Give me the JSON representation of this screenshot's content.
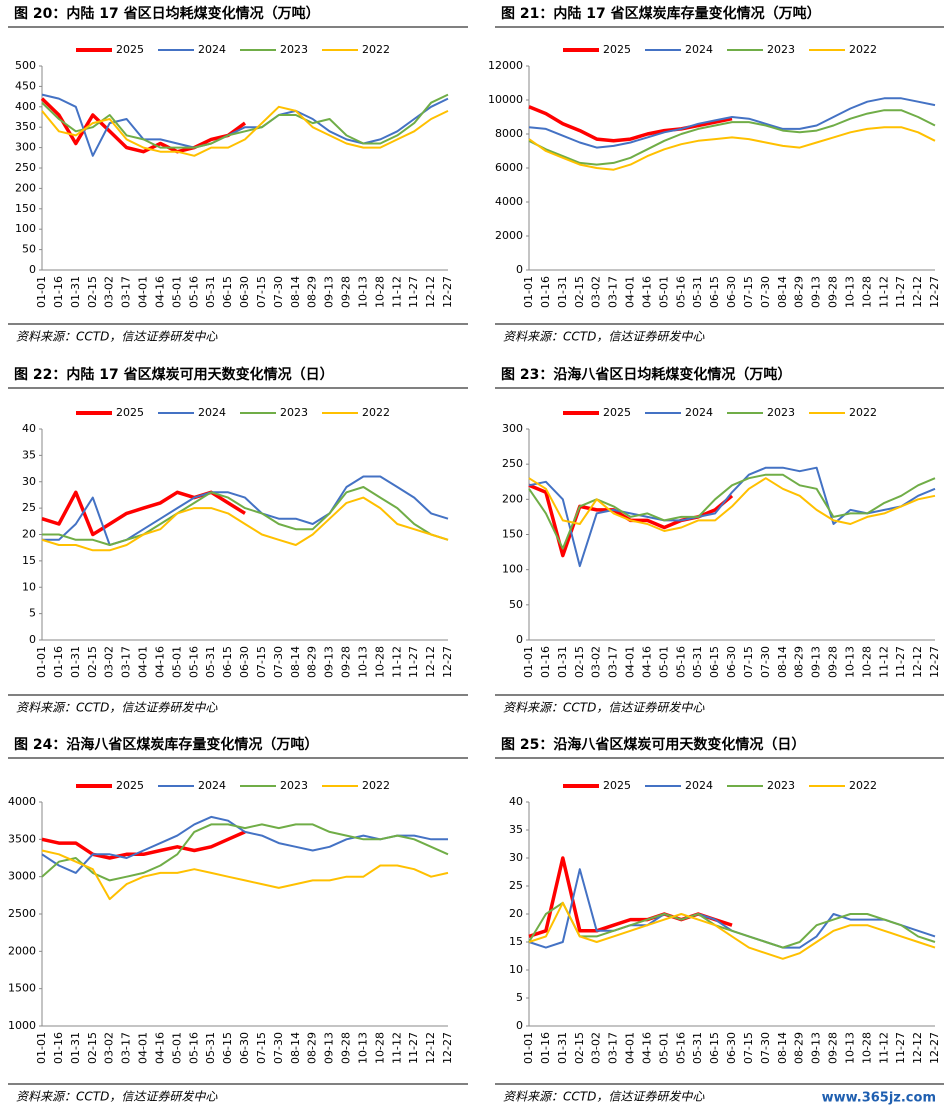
{
  "chart_data": [
    {
      "type": "line",
      "title": "图 20：内陆 17 省区日均耗煤变化情况（万吨）",
      "source": "资料来源：CCTD，信达证券研发中心",
      "categories": [
        "01-01",
        "01-16",
        "01-31",
        "02-15",
        "03-02",
        "03-17",
        "04-01",
        "04-16",
        "05-01",
        "05-16",
        "05-31",
        "06-15",
        "06-30",
        "07-15",
        "07-30",
        "08-14",
        "08-29",
        "09-13",
        "09-28",
        "10-13",
        "10-28",
        "11-12",
        "11-27",
        "12-12",
        "12-27"
      ],
      "ylim": [
        0,
        500
      ],
      "yticks": [
        0,
        50,
        100,
        150,
        200,
        250,
        300,
        350,
        400,
        450,
        500
      ],
      "series": [
        {
          "name": "2025",
          "color": "#ff0000",
          "values": [
            420,
            380,
            310,
            380,
            340,
            300,
            290,
            310,
            290,
            300,
            320,
            330,
            360,
            null,
            null,
            null,
            null,
            null,
            null,
            null,
            null,
            null,
            null,
            null,
            null
          ]
        },
        {
          "name": "2024",
          "color": "#4472c4",
          "values": [
            430,
            420,
            400,
            280,
            360,
            370,
            320,
            320,
            310,
            300,
            310,
            330,
            350,
            350,
            380,
            390,
            370,
            340,
            320,
            310,
            320,
            340,
            370,
            400,
            420
          ]
        },
        {
          "name": "2023",
          "color": "#70ad47",
          "values": [
            410,
            370,
            340,
            350,
            380,
            330,
            320,
            300,
            300,
            300,
            310,
            330,
            340,
            350,
            380,
            380,
            360,
            370,
            330,
            310,
            310,
            330,
            360,
            410,
            430
          ]
        },
        {
          "name": "2022",
          "color": "#ffc000",
          "values": [
            390,
            340,
            330,
            360,
            370,
            320,
            300,
            290,
            290,
            280,
            300,
            300,
            320,
            360,
            400,
            390,
            350,
            330,
            310,
            300,
            300,
            320,
            340,
            370,
            390
          ]
        }
      ]
    },
    {
      "type": "line",
      "title": "图 21：内陆 17 省区煤炭库存量变化情况（万吨）",
      "source": "资料来源：CCTD，信达证券研发中心",
      "categories": [
        "01-01",
        "01-16",
        "01-31",
        "02-15",
        "03-02",
        "03-17",
        "04-01",
        "04-16",
        "05-01",
        "05-16",
        "05-31",
        "06-15",
        "06-30",
        "07-15",
        "07-30",
        "08-14",
        "08-29",
        "09-13",
        "09-28",
        "10-13",
        "10-28",
        "11-12",
        "11-27",
        "12-12",
        "12-27"
      ],
      "ylim": [
        0,
        12000
      ],
      "yticks": [
        0,
        2000,
        4000,
        6000,
        8000,
        10000,
        12000
      ],
      "series": [
        {
          "name": "2025",
          "color": "#ff0000",
          "values": [
            9600,
            9200,
            8600,
            8200,
            7700,
            7600,
            7700,
            8000,
            8200,
            8300,
            8500,
            8700,
            8900,
            null,
            null,
            null,
            null,
            null,
            null,
            null,
            null,
            null,
            null,
            null,
            null
          ]
        },
        {
          "name": "2024",
          "color": "#4472c4",
          "values": [
            8400,
            8300,
            7900,
            7500,
            7200,
            7300,
            7500,
            7800,
            8100,
            8300,
            8600,
            8800,
            9000,
            8900,
            8600,
            8300,
            8300,
            8500,
            9000,
            9500,
            9900,
            10100,
            10100,
            9900,
            9700
          ]
        },
        {
          "name": "2023",
          "color": "#70ad47",
          "values": [
            7600,
            7100,
            6700,
            6300,
            6200,
            6300,
            6600,
            7100,
            7600,
            8000,
            8300,
            8500,
            8700,
            8700,
            8500,
            8200,
            8100,
            8200,
            8500,
            8900,
            9200,
            9400,
            9400,
            9000,
            8500
          ]
        },
        {
          "name": "2022",
          "color": "#ffc000",
          "values": [
            7700,
            7000,
            6600,
            6200,
            6000,
            5900,
            6200,
            6700,
            7100,
            7400,
            7600,
            7700,
            7800,
            7700,
            7500,
            7300,
            7200,
            7500,
            7800,
            8100,
            8300,
            8400,
            8400,
            8100,
            7600
          ]
        }
      ]
    },
    {
      "type": "line",
      "title": "图 22：内陆 17 省区煤炭可用天数变化情况（日）",
      "source": "资料来源：CCTD，信达证券研发中心",
      "categories": [
        "01-01",
        "01-16",
        "01-31",
        "02-15",
        "03-02",
        "03-17",
        "04-01",
        "04-16",
        "05-01",
        "05-16",
        "05-31",
        "06-15",
        "06-30",
        "07-15",
        "07-30",
        "08-14",
        "08-29",
        "09-13",
        "09-28",
        "10-13",
        "10-28",
        "11-12",
        "11-27",
        "12-12",
        "12-27"
      ],
      "ylim": [
        0,
        40
      ],
      "yticks": [
        0,
        5,
        10,
        15,
        20,
        25,
        30,
        35,
        40
      ],
      "series": [
        {
          "name": "2025",
          "color": "#ff0000",
          "values": [
            23,
            22,
            28,
            20,
            22,
            24,
            25,
            26,
            28,
            27,
            28,
            26,
            24,
            null,
            null,
            null,
            null,
            null,
            null,
            null,
            null,
            null,
            null,
            null,
            null
          ]
        },
        {
          "name": "2024",
          "color": "#4472c4",
          "values": [
            19,
            19,
            22,
            27,
            18,
            19,
            21,
            23,
            25,
            27,
            28,
            28,
            27,
            24,
            23,
            23,
            22,
            24,
            29,
            31,
            31,
            29,
            27,
            24,
            23
          ]
        },
        {
          "name": "2023",
          "color": "#70ad47",
          "values": [
            20,
            20,
            19,
            19,
            18,
            19,
            20,
            22,
            24,
            26,
            28,
            27,
            25,
            24,
            22,
            21,
            21,
            24,
            28,
            29,
            27,
            25,
            22,
            20,
            19
          ]
        },
        {
          "name": "2022",
          "color": "#ffc000",
          "values": [
            19,
            18,
            18,
            17,
            17,
            18,
            20,
            21,
            24,
            25,
            25,
            24,
            22,
            20,
            19,
            18,
            20,
            23,
            26,
            27,
            25,
            22,
            21,
            20,
            19
          ]
        }
      ]
    },
    {
      "type": "line",
      "title": "图 23：沿海八省区日均耗煤变化情况（万吨）",
      "source": "资料来源：CCTD，信达证券研发中心",
      "categories": [
        "01-01",
        "01-16",
        "01-31",
        "02-15",
        "03-02",
        "03-17",
        "04-01",
        "04-16",
        "05-01",
        "05-16",
        "05-31",
        "06-15",
        "06-30",
        "07-15",
        "07-30",
        "08-14",
        "08-29",
        "09-13",
        "09-28",
        "10-13",
        "10-28",
        "11-12",
        "11-27",
        "12-12",
        "12-27"
      ],
      "ylim": [
        0,
        300
      ],
      "yticks": [
        0,
        50,
        100,
        150,
        200,
        250,
        300
      ],
      "series": [
        {
          "name": "2025",
          "color": "#ff0000",
          "values": [
            220,
            210,
            120,
            190,
            185,
            185,
            170,
            170,
            160,
            170,
            175,
            185,
            205,
            null,
            null,
            null,
            null,
            null,
            null,
            null,
            null,
            null,
            null,
            null,
            null
          ]
        },
        {
          "name": "2024",
          "color": "#4472c4",
          "values": [
            220,
            225,
            200,
            105,
            180,
            185,
            180,
            175,
            170,
            170,
            175,
            180,
            210,
            235,
            245,
            245,
            240,
            245,
            165,
            185,
            180,
            185,
            190,
            205,
            215
          ]
        },
        {
          "name": "2023",
          "color": "#70ad47",
          "values": [
            215,
            180,
            130,
            190,
            200,
            190,
            175,
            180,
            170,
            175,
            175,
            200,
            220,
            230,
            235,
            235,
            220,
            215,
            175,
            180,
            180,
            195,
            205,
            220,
            230
          ]
        },
        {
          "name": "2022",
          "color": "#ffc000",
          "values": [
            230,
            215,
            170,
            165,
            200,
            180,
            170,
            165,
            155,
            160,
            170,
            170,
            190,
            215,
            230,
            215,
            205,
            185,
            170,
            165,
            175,
            180,
            190,
            200,
            205
          ]
        }
      ]
    },
    {
      "type": "line",
      "title": "图 24：沿海八省区煤炭库存量变化情况（万吨）",
      "source": "资料来源：CCTD，信达证券研发中心",
      "categories": [
        "01-01",
        "01-16",
        "01-31",
        "02-15",
        "03-02",
        "03-17",
        "04-01",
        "04-16",
        "05-01",
        "05-16",
        "05-31",
        "06-15",
        "06-30",
        "07-15",
        "07-30",
        "08-14",
        "08-29",
        "09-13",
        "09-28",
        "10-13",
        "10-28",
        "11-12",
        "11-27",
        "12-12",
        "12-27"
      ],
      "ylim": [
        1000,
        4000
      ],
      "yticks": [
        1000,
        1500,
        2000,
        2500,
        3000,
        3500,
        4000
      ],
      "series": [
        {
          "name": "2025",
          "color": "#ff0000",
          "values": [
            3500,
            3450,
            3450,
            3300,
            3250,
            3300,
            3300,
            3350,
            3400,
            3350,
            3400,
            3500,
            3600,
            null,
            null,
            null,
            null,
            null,
            null,
            null,
            null,
            null,
            null,
            null,
            null
          ]
        },
        {
          "name": "2024",
          "color": "#4472c4",
          "values": [
            3300,
            3150,
            3050,
            3300,
            3300,
            3250,
            3350,
            3450,
            3550,
            3700,
            3800,
            3750,
            3600,
            3550,
            3450,
            3400,
            3350,
            3400,
            3500,
            3550,
            3500,
            3550,
            3550,
            3500,
            3500
          ]
        },
        {
          "name": "2023",
          "color": "#70ad47",
          "values": [
            3000,
            3200,
            3250,
            3050,
            2950,
            3000,
            3050,
            3150,
            3300,
            3600,
            3700,
            3700,
            3650,
            3700,
            3650,
            3700,
            3700,
            3600,
            3550,
            3500,
            3500,
            3550,
            3500,
            3400,
            3300
          ]
        },
        {
          "name": "2022",
          "color": "#ffc000",
          "values": [
            3350,
            3300,
            3200,
            3100,
            2700,
            2900,
            3000,
            3050,
            3050,
            3100,
            3050,
            3000,
            2950,
            2900,
            2850,
            2900,
            2950,
            2950,
            3000,
            3000,
            3150,
            3150,
            3100,
            3000,
            3050
          ]
        }
      ]
    },
    {
      "type": "line",
      "title": "图 25：沿海八省区煤炭可用天数变化情况（日）",
      "source": "资料来源：CCTD，信达证券研发中心",
      "categories": [
        "01-01",
        "01-16",
        "01-31",
        "02-15",
        "03-02",
        "03-17",
        "04-01",
        "04-16",
        "05-01",
        "05-16",
        "05-31",
        "06-15",
        "06-30",
        "07-15",
        "07-30",
        "08-14",
        "08-29",
        "09-13",
        "09-28",
        "10-13",
        "10-28",
        "11-12",
        "11-27",
        "12-12",
        "12-27"
      ],
      "ylim": [
        0,
        40
      ],
      "yticks": [
        0,
        5,
        10,
        15,
        20,
        25,
        30,
        35,
        40
      ],
      "series": [
        {
          "name": "2025",
          "color": "#ff0000",
          "values": [
            16,
            17,
            30,
            17,
            17,
            18,
            19,
            19,
            20,
            19,
            20,
            19,
            18,
            null,
            null,
            null,
            null,
            null,
            null,
            null,
            null,
            null,
            null,
            null,
            null
          ]
        },
        {
          "name": "2024",
          "color": "#4472c4",
          "values": [
            15,
            14,
            15,
            28,
            17,
            17,
            18,
            18,
            20,
            19,
            20,
            19,
            17,
            16,
            15,
            14,
            14,
            16,
            20,
            19,
            19,
            19,
            18,
            17,
            16
          ]
        },
        {
          "name": "2023",
          "color": "#70ad47",
          "values": [
            15,
            20,
            22,
            16,
            16,
            17,
            18,
            19,
            20,
            19,
            20,
            18,
            17,
            16,
            15,
            14,
            15,
            18,
            19,
            20,
            20,
            19,
            18,
            16,
            15
          ]
        },
        {
          "name": "2022",
          "color": "#ffc000",
          "values": [
            15,
            16,
            22,
            16,
            15,
            16,
            17,
            18,
            19,
            20,
            19,
            18,
            16,
            14,
            13,
            12,
            13,
            15,
            17,
            18,
            18,
            17,
            16,
            15,
            14
          ]
        }
      ]
    }
  ],
  "watermark": "www.365jz.com"
}
